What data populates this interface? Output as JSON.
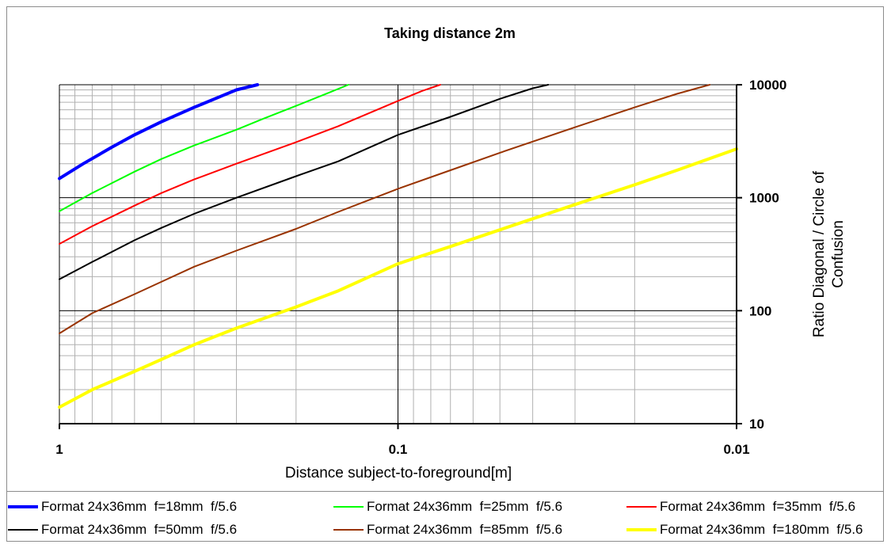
{
  "chart_data": {
    "type": "line",
    "title": "Taking distance 2m",
    "xlabel": "Distance subject-to-foreground[m]",
    "ylabel_line1": "Ratio Diagonal / Circle of",
    "ylabel_line2": "Confusion",
    "x_scale": "log",
    "x_reversed": true,
    "xlim": [
      1,
      0.01
    ],
    "x_ticks": [
      "1",
      "0.1",
      "0.01"
    ],
    "y_scale": "log",
    "ylim": [
      10,
      10000
    ],
    "y_ticks": [
      "10",
      "100",
      "1000",
      "10000"
    ],
    "y_axis_position": "right",
    "grid": true,
    "legend_position": "bottom",
    "series": [
      {
        "name": "Format 24x36mm  f=18mm  f/5.6",
        "color": "#0000ff",
        "width": 4,
        "x": [
          1,
          0.85,
          0.7,
          0.6,
          0.5,
          0.4,
          0.33,
          0.3,
          0.26
        ],
        "y": [
          1480,
          2000,
          2800,
          3600,
          4700,
          6300,
          8000,
          9000,
          10000
        ]
      },
      {
        "name": "Format 24x36mm  f=25mm  f/5.6",
        "color": "#00ff00",
        "width": 2,
        "x": [
          1,
          0.8,
          0.6,
          0.5,
          0.4,
          0.3,
          0.25,
          0.2,
          0.16,
          0.14
        ],
        "y": [
          760,
          1100,
          1700,
          2200,
          2900,
          4000,
          5000,
          6500,
          8500,
          10000
        ]
      },
      {
        "name": "Format 24x36mm  f=35mm  f/5.6",
        "color": "#ff0000",
        "width": 2,
        "x": [
          1,
          0.8,
          0.6,
          0.5,
          0.4,
          0.3,
          0.2,
          0.15,
          0.1,
          0.085,
          0.075
        ],
        "y": [
          390,
          560,
          850,
          1100,
          1450,
          2000,
          3100,
          4300,
          7200,
          8800,
          10000
        ]
      },
      {
        "name": "Format 24x36mm  f=50mm  f/5.6",
        "color": "#000000",
        "width": 2,
        "x": [
          1,
          0.8,
          0.6,
          0.5,
          0.4,
          0.3,
          0.2,
          0.15,
          0.1,
          0.07,
          0.05,
          0.04,
          0.036
        ],
        "y": [
          190,
          270,
          420,
          540,
          720,
          1000,
          1550,
          2100,
          3600,
          5200,
          7500,
          9300,
          10000
        ]
      },
      {
        "name": "Format 24x36mm  f=85mm  f/5.6",
        "color": "#993300",
        "width": 2,
        "x": [
          1,
          0.8,
          0.6,
          0.5,
          0.4,
          0.3,
          0.2,
          0.15,
          0.1,
          0.07,
          0.05,
          0.03,
          0.02,
          0.015,
          0.012
        ],
        "y": [
          63,
          95,
          140,
          180,
          245,
          340,
          530,
          750,
          1200,
          1750,
          2500,
          4200,
          6300,
          8300,
          10000
        ]
      },
      {
        "name": "Format 24x36mm  f=180mm  f/5.6",
        "color": "#ffff00",
        "width": 4,
        "x": [
          1,
          0.8,
          0.6,
          0.5,
          0.4,
          0.3,
          0.2,
          0.15,
          0.1,
          0.07,
          0.05,
          0.03,
          0.02,
          0.015,
          0.01
        ],
        "y": [
          14,
          20,
          29,
          37,
          50,
          70,
          108,
          150,
          260,
          370,
          520,
          870,
          1300,
          1750,
          2700
        ]
      }
    ]
  }
}
